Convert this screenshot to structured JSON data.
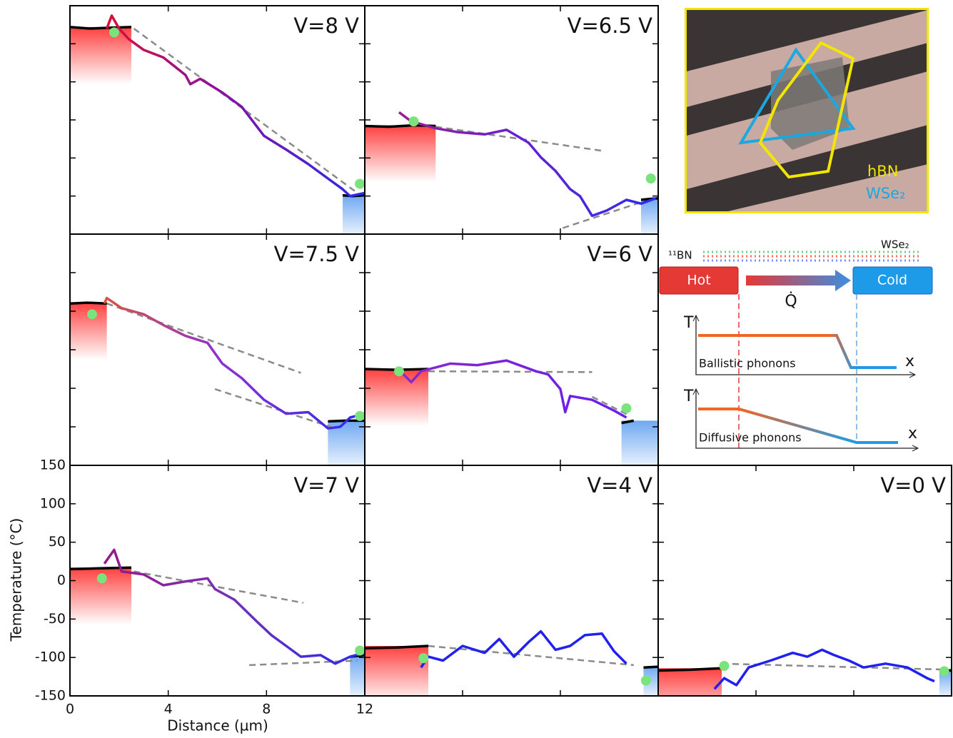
{
  "chart_data": {
    "type": "line",
    "xlim": [
      0,
      12
    ],
    "ylim": [
      -150,
      150
    ],
    "xticks": [
      0,
      4,
      8,
      12
    ],
    "yticks": [
      -150,
      -100,
      -50,
      0,
      50,
      100,
      150
    ],
    "x_label": "Distance (µm)",
    "y_label": "Temperature (°C)",
    "electrode_color": "#000000",
    "fit_color": "#8a8a8a",
    "marker_color": "#7be37b",
    "hot_color": "#ff2a2a",
    "cold_color": "#5f9ff0",
    "panels": [
      {
        "label": "V=8 V",
        "colors": [
          "#f01010",
          "#8a10a0",
          "#2a2af0"
        ],
        "profile": {
          "x": [
            1.5,
            1.7,
            2,
            2.4,
            3,
            3.8,
            4.7,
            4.9,
            5.3,
            6.2,
            7,
            7.9,
            8.8,
            9.7,
            10.5,
            11.1,
            11.4,
            12
          ],
          "y": [
            120,
            137,
            120,
            106,
            92,
            82,
            59,
            47,
            54,
            36,
            17,
            -21,
            -39,
            -58,
            -77,
            -91,
            -100,
            -96
          ]
        },
        "hot": {
          "x": [
            0,
            0.8,
            1.6,
            2.5
          ],
          "y": [
            122,
            120,
            121,
            122
          ]
        },
        "cold": {
          "x": [
            11.1,
            11.5,
            12
          ],
          "y": [
            -99,
            -100,
            -99
          ]
        },
        "fits": [
          {
            "x": [
              2.6,
              11.7
            ],
            "y": [
              120,
              -96
            ]
          }
        ],
        "markers": {
          "x": [
            1.8,
            11.8
          ],
          "y": [
            115,
            -84
          ]
        }
      },
      {
        "label": "V=6.5 V",
        "colors": [
          "#a02080",
          "#6a20d0",
          "#2a2af0"
        ],
        "profile": {
          "x": [
            1.4,
            1.9,
            2.9,
            3.8,
            4.9,
            5.8,
            6.7,
            7.2,
            7.8,
            8.4,
            8.8,
            9.3,
            9.9,
            10.7,
            11.3,
            11.9
          ],
          "y": [
            10,
            -2,
            -11,
            -16,
            -19,
            -13,
            -30,
            -49,
            -67,
            -91,
            -100,
            -126,
            -119,
            -105,
            -110,
            -103
          ]
        },
        "hot": {
          "x": [
            0,
            1,
            2,
            2.9
          ],
          "y": [
            -8,
            -9,
            -7,
            -8
          ]
        },
        "cold": {
          "x": [
            11.3,
            11.6,
            12
          ],
          "y": [
            -105,
            -104,
            -103
          ]
        },
        "fits": [
          {
            "x": [
              2.9,
              9.8
            ],
            "y": [
              -9,
              -41
            ]
          },
          {
            "x": [
              8.1,
              11.6
            ],
            "y": [
              -142,
              -105
            ]
          }
        ],
        "markers": {
          "x": [
            2,
            11.7
          ],
          "y": [
            -2,
            -77
          ]
        }
      },
      {
        "label": "V=7.5 V",
        "colors": [
          "#f06010",
          "#9030d0",
          "#2a2af0"
        ],
        "profile": {
          "x": [
            1.4,
            1.5,
            2.1,
            3,
            3.8,
            4.7,
            5.6,
            6.2,
            7,
            7.9,
            8.8,
            9.7,
            10.5,
            11,
            11.4,
            12
          ],
          "y": [
            60,
            67,
            54,
            46,
            32,
            18,
            9,
            -18,
            -37,
            -65,
            -83,
            -81,
            -102,
            -100,
            -88,
            -83
          ]
        },
        "hot": {
          "x": [
            0,
            0.7,
            1.5
          ],
          "y": [
            60,
            61,
            60
          ]
        },
        "cold": {
          "x": [
            10.5,
            11.2,
            12
          ],
          "y": [
            -93,
            -92,
            -92
          ]
        },
        "fits": [
          {
            "x": [
              1.5,
              9.4
            ],
            "y": [
              60,
              -30
            ]
          },
          {
            "x": [
              5.9,
              10.8
            ],
            "y": [
              -51,
              -102
            ]
          }
        ],
        "markers": {
          "x": [
            0.9,
            11.8
          ],
          "y": [
            46,
            -86
          ]
        }
      },
      {
        "label": "V=6 V",
        "colors": [
          "#8a30c0",
          "#7a20e0",
          "#6020f0"
        ],
        "profile": {
          "x": [
            1.4,
            1.9,
            2.3,
            3.5,
            4.6,
            5.8,
            7,
            7.5,
            8,
            8.2,
            8.4,
            9.3,
            10.2,
            10.7
          ],
          "y": [
            -26,
            -42,
            -28,
            -18,
            -20,
            -14,
            -28,
            -32,
            -51,
            -81,
            -60,
            -65,
            -79,
            -88
          ]
        },
        "hot": {
          "x": [
            0,
            1.3,
            2.6
          ],
          "y": [
            -25,
            -26,
            -25
          ]
        },
        "cold": {
          "x": [
            10.5,
            11
          ],
          "y": [
            -95,
            -92
          ]
        },
        "fits": [
          {
            "x": [
              2.6,
              9.3
            ],
            "y": [
              -28,
              -29
            ]
          },
          {
            "x": [
              9.3,
              10.8
            ],
            "y": [
              -61,
              -85
            ]
          }
        ],
        "markers": {
          "x": [
            1.4,
            10.7
          ],
          "y": [
            -28,
            -76
          ]
        }
      },
      {
        "label": "V=7 V",
        "colors": [
          "#a01080",
          "#7a30b0",
          "#2a2af0"
        ],
        "profile": {
          "x": [
            1.4,
            1.8,
            2.1,
            3,
            3.8,
            4.7,
            5.6,
            5.9,
            6.7,
            7.6,
            8.2,
            8.8,
            9.4,
            10.2,
            10.8,
            11.4,
            12
          ],
          "y": [
            22,
            40,
            12,
            8,
            -6,
            -1,
            3,
            -11,
            -25,
            -53,
            -71,
            -85,
            -99,
            -97,
            -108,
            -99,
            -94
          ]
        },
        "hot": {
          "x": [
            0,
            1.2,
            2.5
          ],
          "y": [
            15,
            16,
            17
          ]
        },
        "cold": {
          "x": [
            11.4,
            12
          ],
          "y": [
            -99,
            -97
          ]
        },
        "fits": [
          {
            "x": [
              2.6,
              9.5
            ],
            "y": [
              12,
              -29
            ]
          },
          {
            "x": [
              7.3,
              11.7
            ],
            "y": [
              -110,
              -104
            ]
          }
        ],
        "markers": {
          "x": [
            1.3,
            11.8
          ],
          "y": [
            3,
            -91
          ]
        }
      },
      {
        "label": "V=4 V",
        "colors": [
          "#2020f0",
          "#2020f0"
        ],
        "profile": {
          "x": [
            2.3,
            2.6,
            3.2,
            4,
            4.9,
            5.5,
            6.1,
            6.7,
            7.2,
            7.8,
            8.4,
            9,
            9.7,
            10.2,
            10.7
          ],
          "y": [
            -113,
            -99,
            -104,
            -85,
            -94,
            -76,
            -99,
            -80,
            -66,
            -90,
            -85,
            -71,
            -69,
            -92,
            -108
          ]
        },
        "hot": {
          "x": [
            0,
            1.3,
            2.6
          ],
          "y": [
            -88,
            -87,
            -85
          ]
        },
        "cold": {
          "x": [
            11.4,
            12
          ],
          "y": [
            -113,
            -112
          ]
        },
        "fits": [
          {
            "x": [
              2.6,
              11
            ],
            "y": [
              -85,
              -110
            ]
          }
        ],
        "markers": {
          "x": [
            2.4,
            11.5
          ],
          "y": [
            -101,
            -130
          ]
        }
      },
      {
        "label": "V=0 V",
        "colors": [
          "#2020f0",
          "#2020f0"
        ],
        "profile": {
          "x": [
            2.3,
            2.7,
            3.2,
            3.7,
            4.6,
            5.5,
            6.1,
            6.7,
            7.2,
            7.8,
            8.4,
            9.3,
            10.2,
            11,
            11.3
          ],
          "y": [
            -141,
            -127,
            -136,
            -113,
            -104,
            -94,
            -99,
            -90,
            -97,
            -104,
            -113,
            -108,
            -113,
            -127,
            -131
          ]
        },
        "hot": {
          "x": [
            0,
            1.3,
            2.6
          ],
          "y": [
            -117,
            -116,
            -114
          ]
        },
        "cold": {
          "x": [
            11.5,
            12
          ],
          "y": [
            -117,
            -117
          ]
        },
        "fits": [
          {
            "x": [
              2.6,
              12
            ],
            "y": [
              -108,
              -116
            ]
          }
        ],
        "markers": {
          "x": [
            2.7,
            11.7
          ],
          "y": [
            -111,
            -118
          ]
        }
      }
    ]
  },
  "inset": {
    "photo": {
      "labels": [
        "hBN",
        "WSe₂"
      ]
    },
    "schematic": {
      "isotope_label": "¹¹BN",
      "material_label": "WSe₂",
      "hot": "Hot",
      "cold": "Cold",
      "heat_flow": "Q̇",
      "plots": [
        {
          "y_axis": "T",
          "x_axis": "x",
          "caption": "Ballistic phonons"
        },
        {
          "y_axis": "T",
          "x_axis": "x",
          "caption": "Diffusive phonons"
        }
      ]
    }
  }
}
